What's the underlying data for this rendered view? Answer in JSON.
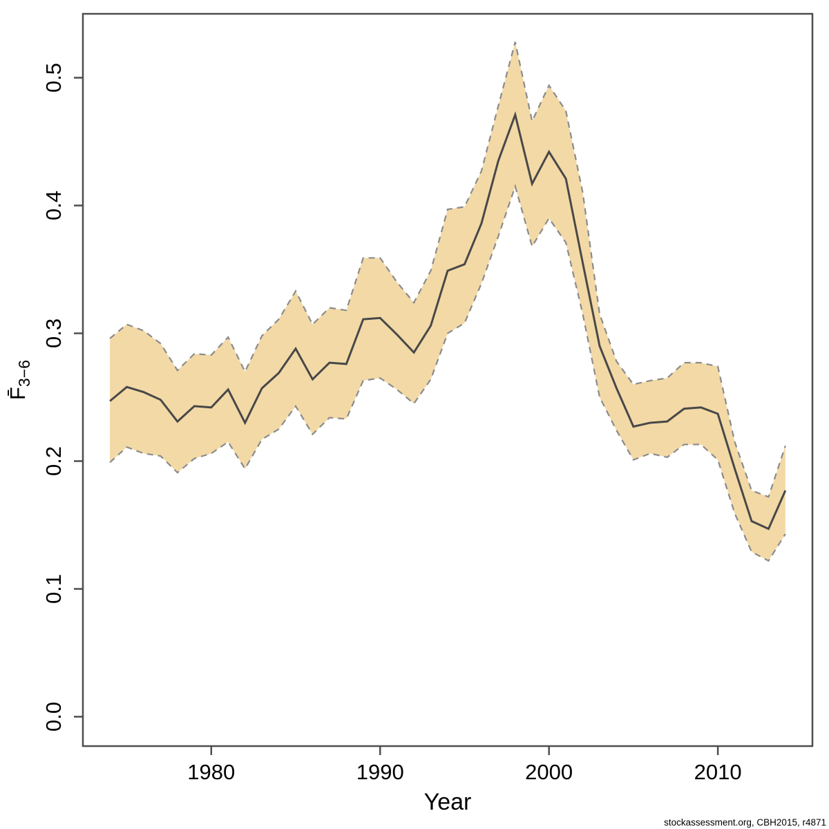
{
  "chart_data": {
    "type": "line",
    "title": "",
    "xlabel": "Year",
    "ylabel_main": "F̄",
    "ylabel_sub": "3−6",
    "grid": false,
    "legend": null,
    "xlim": [
      1972.4,
      2015.6
    ],
    "ylim": [
      -0.023,
      0.55
    ],
    "x_ticks": [
      1980,
      1990,
      2000,
      2010
    ],
    "y_ticks": [
      0.0,
      0.1,
      0.2,
      0.3,
      0.4,
      0.5
    ],
    "x": [
      1974,
      1975,
      1976,
      1977,
      1978,
      1979,
      1980,
      1981,
      1982,
      1983,
      1984,
      1985,
      1986,
      1987,
      1988,
      1989,
      1990,
      1991,
      1992,
      1993,
      1994,
      1995,
      1996,
      1997,
      1998,
      1999,
      2000,
      2001,
      2002,
      2003,
      2004,
      2005,
      2006,
      2007,
      2008,
      2009,
      2010,
      2011,
      2012,
      2013,
      2014
    ],
    "series": [
      {
        "name": "mean",
        "style": "solid",
        "values": [
          0.247,
          0.258,
          0.254,
          0.248,
          0.231,
          0.243,
          0.242,
          0.256,
          0.23,
          0.257,
          0.269,
          0.288,
          0.264,
          0.277,
          0.276,
          0.311,
          0.312,
          0.299,
          0.285,
          0.306,
          0.349,
          0.354,
          0.386,
          0.435,
          0.471,
          0.417,
          0.442,
          0.421,
          0.355,
          0.29,
          0.257,
          0.227,
          0.23,
          0.231,
          0.241,
          0.242,
          0.237,
          0.194,
          0.153,
          0.147,
          0.177
        ]
      },
      {
        "name": "lower_95ci",
        "style": "dashed",
        "values": [
          0.199,
          0.211,
          0.206,
          0.204,
          0.191,
          0.202,
          0.206,
          0.215,
          0.194,
          0.217,
          0.225,
          0.243,
          0.221,
          0.234,
          0.233,
          0.263,
          0.265,
          0.256,
          0.245,
          0.264,
          0.3,
          0.308,
          0.339,
          0.376,
          0.415,
          0.368,
          0.39,
          0.371,
          0.315,
          0.25,
          0.224,
          0.201,
          0.206,
          0.203,
          0.213,
          0.213,
          0.201,
          0.159,
          0.129,
          0.122,
          0.143
        ]
      },
      {
        "name": "upper_95ci",
        "style": "dashed",
        "values": [
          0.296,
          0.307,
          0.302,
          0.292,
          0.271,
          0.284,
          0.283,
          0.297,
          0.27,
          0.298,
          0.311,
          0.333,
          0.307,
          0.32,
          0.318,
          0.359,
          0.359,
          0.34,
          0.324,
          0.349,
          0.397,
          0.399,
          0.427,
          0.478,
          0.528,
          0.466,
          0.494,
          0.474,
          0.41,
          0.315,
          0.278,
          0.26,
          0.263,
          0.265,
          0.277,
          0.277,
          0.274,
          0.215,
          0.177,
          0.172,
          0.212
        ]
      }
    ],
    "colors": {
      "band_fill": "#f2d9a6",
      "band_edge": "#8b8b8b",
      "mean_line": "#484848",
      "axis": "#4d4d4d",
      "tick_label": "#000000"
    }
  },
  "footer": {
    "attribution": "stockassessment.org, CBH2015, r4871"
  }
}
